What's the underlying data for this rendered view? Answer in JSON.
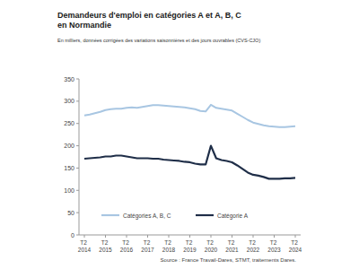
{
  "chart_data": {
    "type": "line",
    "title": "Demandeurs d'emploi en catégories A et A, B, C en Normandie",
    "subtitle": "En milliers, données corrigées des variations saisonnières et des jours ouvrables (CVS-CJO)",
    "source": "Source : France Travail-Dares, STMT, traitements Dares.",
    "categories": [
      "T2 2014",
      null,
      null,
      null,
      "T2 2015",
      null,
      null,
      null,
      "T2 2016",
      null,
      null,
      null,
      "T2 2017",
      null,
      null,
      null,
      "T2 2018",
      null,
      null,
      null,
      "T2 2019",
      null,
      null,
      null,
      "T2 2020",
      null,
      null,
      null,
      "T2 2021",
      null,
      null,
      null,
      "T2 2022",
      null,
      null,
      null,
      "T2 2023",
      null,
      null,
      null,
      "T2 2024"
    ],
    "series": [
      {
        "name": "Catégories A, B, C",
        "color": "#a8c6e2",
        "values": [
          268,
          270,
          273,
          276,
          280,
          282,
          283,
          283,
          285,
          286,
          285,
          287,
          289,
          291,
          291,
          290,
          289,
          288,
          287,
          286,
          284,
          282,
          278,
          277,
          292,
          285,
          283,
          281,
          279,
          272,
          265,
          258,
          252,
          249,
          246,
          244,
          243,
          242,
          242,
          243,
          244
        ]
      },
      {
        "name": "Catégorie A",
        "color": "#1f2e48",
        "values": [
          171,
          172,
          173,
          174,
          176,
          176,
          178,
          178,
          176,
          174,
          172,
          172,
          172,
          171,
          171,
          169,
          168,
          167,
          166,
          164,
          163,
          160,
          158,
          158,
          200,
          172,
          168,
          166,
          163,
          156,
          148,
          140,
          135,
          133,
          130,
          126,
          126,
          126,
          127,
          127,
          128
        ]
      }
    ],
    "ylim": [
      0,
      350
    ],
    "yticks": [
      0,
      50,
      100,
      150,
      200,
      250,
      300,
      350
    ],
    "grid": false,
    "legend": "bottom"
  }
}
